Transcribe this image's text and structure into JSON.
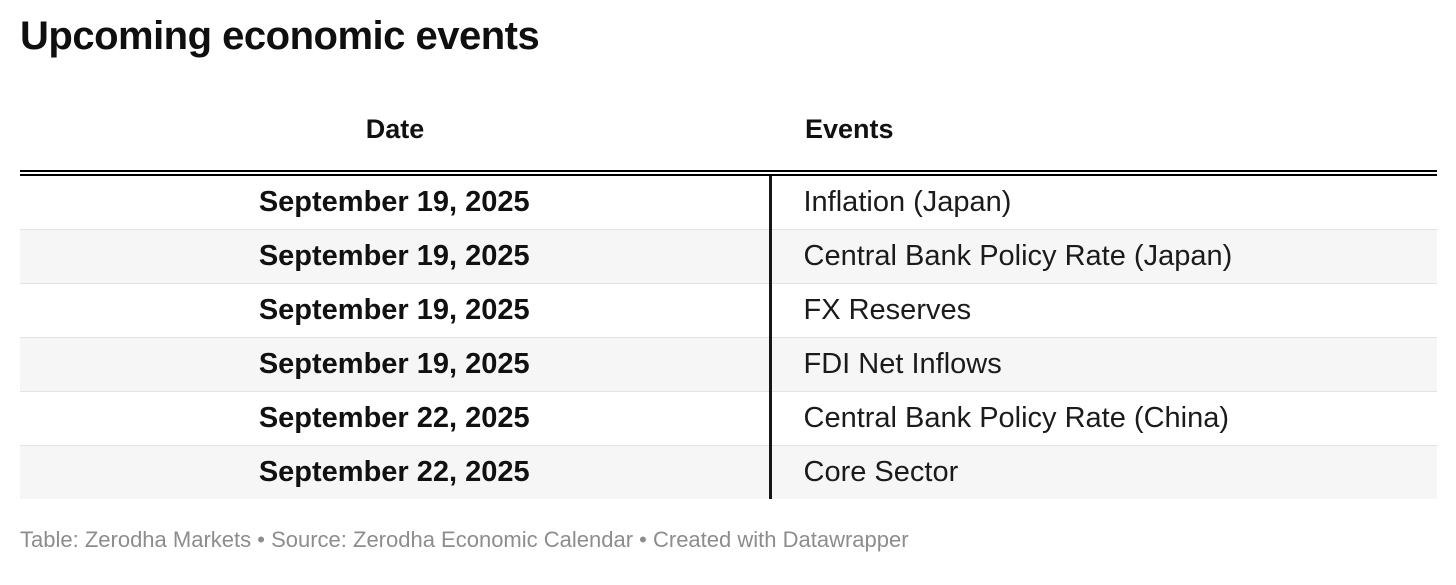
{
  "title": "Upcoming economic events",
  "chart_data": {
    "type": "table",
    "title": "Upcoming economic events",
    "columns": [
      "Date",
      "Events"
    ],
    "rows": [
      [
        "September 19, 2025",
        "Inflation (Japan)"
      ],
      [
        "September 19, 2025",
        "Central Bank Policy Rate (Japan)"
      ],
      [
        "September 19, 2025",
        "FX Reserves"
      ],
      [
        "September 19, 2025",
        "FDI Net Inflows"
      ],
      [
        "September 22, 2025",
        "Central Bank Policy Rate (China)"
      ],
      [
        "September 22, 2025",
        "Core Sector"
      ]
    ],
    "layout_hints": {
      "date_column_align": "center",
      "events_column_align": "left",
      "zebra_striping": true,
      "header_border": "double"
    }
  },
  "footer": {
    "table_label": "Table: ",
    "table_source": "Zerodha Markets",
    "separator1": " • ",
    "source_label": "Source: ",
    "source_name": "Zerodha Economic Calendar",
    "separator2": " • ",
    "created_label": "Created with ",
    "creator": "Datawrapper"
  },
  "colors": {
    "title_text": "#0f0f0f",
    "body_text": "#1b1b1b",
    "stripe_row": "#f6f6f6",
    "row_divider": "#e3e3e3",
    "column_divider": "#161616",
    "header_border": "#000000",
    "footer_text": "#8d8d8d",
    "background": "#ffffff"
  }
}
